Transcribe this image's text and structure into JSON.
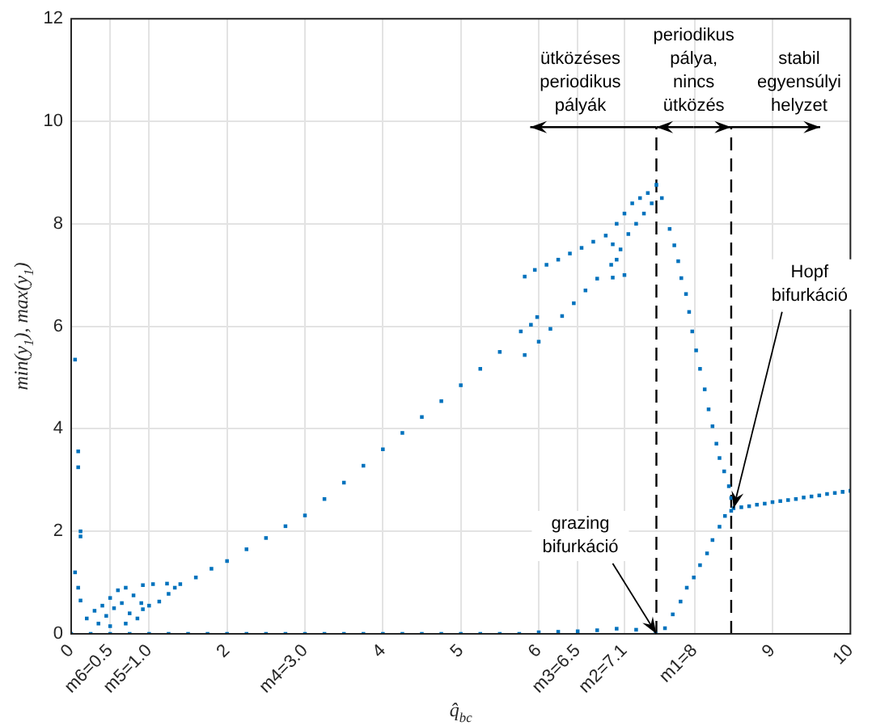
{
  "chart_data": {
    "type": "scatter",
    "xlabel": "q̂$_{bc}$",
    "ylabel": "min(y$_{1}$), max(y$_{1}$)",
    "xlim": [
      0,
      10
    ],
    "ylim": [
      0,
      12
    ],
    "xticks": [
      0,
      {
        "value": 0.5,
        "label": "m6=0.5"
      },
      {
        "value": 1,
        "label": "m5=1.0"
      },
      2,
      {
        "value": 3,
        "label": "m4=3.0"
      },
      4,
      5,
      6,
      {
        "value": 6.5,
        "label": "m3=6.5"
      },
      {
        "value": 7.1,
        "label": "m2=7.1"
      },
      {
        "value": 8,
        "label": "m1=8"
      },
      9,
      10
    ],
    "yticks": [
      0,
      2,
      4,
      6,
      8,
      10,
      12
    ],
    "grid": true,
    "marker": "square",
    "legend": false,
    "ref_lines": [
      {
        "axis": "x",
        "value": 7.51,
        "color": "#000000",
        "line_style": "dashed"
      },
      {
        "axis": "x",
        "value": 8.47,
        "color": "#000000",
        "line_style": "dashed"
      }
    ],
    "annotations": [
      "ütközéses\nperiodikus\npályák",
      "periodikus\npálya,\nnincs\nütközés",
      "stabil\negyensúlyi\nhelyzet",
      {
        "text": "grazing\nbifurkáció",
        "x": 7.51,
        "y": 0
      },
      {
        "text": "Hopf\nbifurkáció",
        "x": 8.5,
        "y": 2.45
      }
    ],
    "series": [
      {
        "color": "#0072bd",
        "x": [
          0,
          0.25,
          0.5,
          0.75,
          1,
          1.25,
          1.5,
          1.75,
          2,
          2.25,
          2.5,
          2.75,
          3,
          3.25,
          3.5,
          3.75,
          4,
          4.25,
          4.5,
          4.75,
          5,
          5.25,
          5.5,
          5.75,
          6,
          6.25,
          6.5,
          6.75,
          7,
          7.25,
          7.5,
          0.05,
          0.09,
          0.09,
          0.12,
          0.12,
          0.05,
          0.09,
          0.12,
          0.2,
          0.3,
          0.35,
          0.4,
          0.45,
          0.5,
          0.55,
          0.6,
          0.65,
          0.7,
          0.75,
          0.8,
          0.85,
          0.9,
          0.7,
          0.5,
          0.92,
          1.05,
          1.23,
          1.33,
          0.92,
          1,
          1.13,
          1.25,
          1.4,
          1.6,
          1.8,
          2,
          2.25,
          2.5,
          2.75,
          3,
          3.25,
          3.5,
          3.75,
          4,
          4.25,
          4.5,
          4.75,
          5,
          5.25,
          5.5,
          5.77,
          5.82,
          5.95,
          6.1,
          6.25,
          6.4,
          6.55,
          6.7,
          6.86,
          5.82,
          5.9,
          5.98,
          6,
          6.15,
          6.3,
          6.45,
          6.6,
          6.75,
          6.93,
          6.95,
          7,
          7.05,
          7.1,
          7.15,
          7.2,
          7.25,
          7.3,
          7.35,
          7.4,
          7.45,
          7.51,
          7,
          7.1,
          6.95,
          7.58,
          7.68,
          7.74,
          7.79,
          7.83,
          7.89,
          7.93,
          7.97,
          8.02,
          8.07,
          8.13,
          8.18,
          8.23,
          8.28,
          8.32,
          8.38,
          8.44,
          8.47,
          7.62,
          7.72,
          7.82,
          7.9,
          7.99,
          8.07,
          8.16,
          8.23,
          8.32,
          8.39,
          8.47,
          8.5,
          8.6,
          8.7,
          8.8,
          8.9,
          9,
          9.1,
          9.2,
          9.3,
          9.4,
          9.5,
          9.6,
          9.7,
          9.8,
          9.9,
          10
        ],
        "values": [
          0,
          0,
          0,
          0,
          0,
          0,
          0,
          0,
          0,
          0,
          0,
          0,
          0,
          0,
          0,
          0,
          0,
          0,
          0,
          0,
          0,
          0,
          0,
          0,
          0.03,
          0.04,
          0.05,
          0.07,
          0.1,
          0.08,
          0,
          5.35,
          3.56,
          3.25,
          2,
          1.9,
          1.2,
          0.9,
          0.65,
          0.3,
          0.45,
          0.2,
          0.55,
          0.35,
          0.7,
          0.5,
          0.85,
          0.6,
          0.9,
          0.4,
          0.75,
          0.3,
          0.6,
          0.2,
          0.15,
          0.95,
          0.97,
          0.98,
          0.9,
          0.48,
          0.55,
          0.63,
          0.78,
          0.97,
          1.1,
          1.27,
          1.42,
          1.65,
          1.87,
          2.1,
          2.31,
          2.63,
          2.95,
          3.28,
          3.6,
          3.92,
          4.23,
          4.54,
          4.85,
          5.17,
          5.5,
          5.9,
          6.97,
          7.1,
          7.2,
          7.3,
          7.42,
          7.53,
          7.65,
          7.77,
          5.44,
          6.03,
          6.18,
          5.7,
          5.95,
          6.2,
          6.45,
          6.7,
          6.93,
          7.2,
          7.6,
          8,
          7.5,
          8.2,
          7.8,
          8.4,
          8,
          8.5,
          8.2,
          8.6,
          8.4,
          8.76,
          7.3,
          7,
          6.95,
          8.5,
          7.9,
          7.58,
          7.27,
          6.94,
          6.63,
          6.28,
          5.9,
          5.53,
          5.17,
          4.77,
          4.38,
          4.05,
          3.71,
          3.43,
          3.17,
          2.88,
          2.65,
          0.11,
          0.38,
          0.63,
          0.9,
          1.1,
          1.34,
          1.57,
          1.83,
          2.09,
          2.3,
          2.4,
          2.45,
          2.47,
          2.49,
          2.52,
          2.54,
          2.57,
          2.59,
          2.61,
          2.63,
          2.66,
          2.68,
          2.7,
          2.73,
          2.75,
          2.77,
          2.79
        ]
      }
    ]
  }
}
